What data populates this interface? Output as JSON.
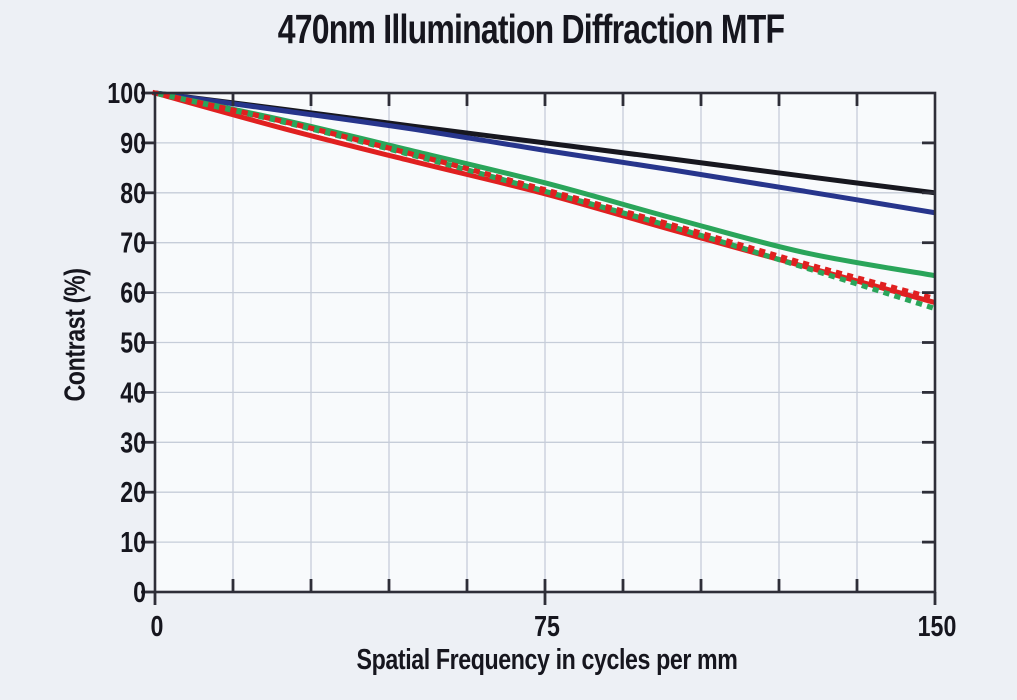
{
  "chart": {
    "title": "470nm Illumination Diffraction MTF",
    "xlabel": "Spatial Frequency in cycles per mm",
    "ylabel": "Contrast (%)"
  },
  "chart_data": {
    "type": "line",
    "title": "470nm Illumination Diffraction MTF",
    "xlabel": "Spatial Frequency in cycles per mm",
    "ylabel": "Contrast (%)",
    "xlim": [
      0,
      150
    ],
    "ylim": [
      0,
      100
    ],
    "grid": true,
    "legend": "none",
    "x_tick_labels": [
      "0",
      "75",
      "150"
    ],
    "y_tick_labels": [
      "100",
      "90",
      "80",
      "70",
      "60",
      "50",
      "40",
      "30",
      "20",
      "10",
      "0"
    ],
    "x_minor_tick_step": 15,
    "y_tick_step": 10,
    "x": [
      0,
      25,
      50,
      75,
      100,
      125,
      150
    ],
    "series": [
      {
        "name": "black-solid",
        "color": "#17171f",
        "style": "solid",
        "values": [
          100,
          96.7,
          93.3,
          90.0,
          86.7,
          83.3,
          80.0
        ]
      },
      {
        "name": "blue-solid",
        "color": "#27358c",
        "style": "solid",
        "values": [
          100,
          96.4,
          92.7,
          88.5,
          84.5,
          80.3,
          76.0
        ]
      },
      {
        "name": "green-solid",
        "color": "#2aa55a",
        "style": "solid",
        "values": [
          100,
          94.5,
          88.3,
          82.0,
          74.8,
          68.0,
          63.4
        ]
      },
      {
        "name": "red-solid",
        "color": "#e02020",
        "style": "solid",
        "values": [
          100,
          92.8,
          86.2,
          79.8,
          72.4,
          65.2,
          58.0
        ]
      },
      {
        "name": "green-dotted",
        "color": "#2aa55a",
        "style": "dotted",
        "values": [
          100,
          94.1,
          87.4,
          80.3,
          73.0,
          65.0,
          56.8
        ]
      },
      {
        "name": "red-dotted",
        "color": "#e02020",
        "style": "dotted",
        "values": [
          100,
          94.2,
          87.6,
          80.6,
          73.4,
          65.8,
          58.8
        ]
      }
    ],
    "colors": {
      "background": "#edf0f5",
      "plot_background": "#f8fafc",
      "grid": "#c6cdd9",
      "axis": "#2e2e38",
      "text": "#16161e"
    }
  }
}
